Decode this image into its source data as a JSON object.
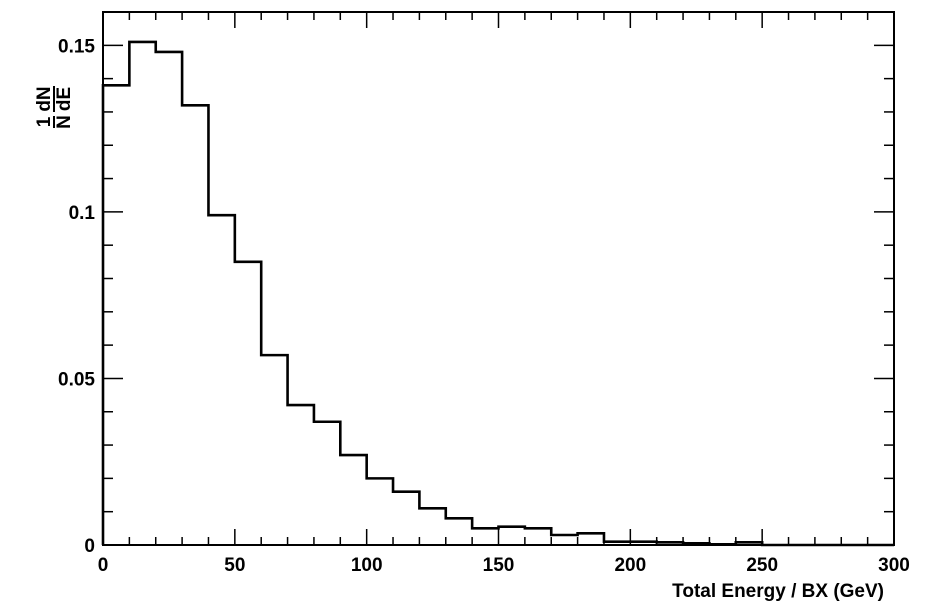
{
  "chart_data": {
    "type": "histogram",
    "title": "",
    "xlabel": "Total Energy / BX (GeV)",
    "ylabel": {
      "prefix_num": "1",
      "prefix_den": "N",
      "frac_num": "dN",
      "frac_den": "dE"
    },
    "xlim": [
      0,
      300
    ],
    "ylim": [
      0,
      0.16
    ],
    "x_major_ticks": [
      0,
      50,
      100,
      150,
      200,
      250,
      300
    ],
    "x_tick_labels": [
      "0",
      "50",
      "100",
      "150",
      "200",
      "250",
      "300"
    ],
    "x_minor_step": 10,
    "y_major_ticks": [
      0,
      0.05,
      0.1,
      0.15
    ],
    "y_tick_labels": [
      "0",
      "0.05",
      "0.1",
      "0.15"
    ],
    "y_minor_step": 0.01,
    "bin_edges": [
      0,
      10,
      20,
      30,
      40,
      50,
      60,
      70,
      80,
      90,
      100,
      110,
      120,
      130,
      140,
      150,
      160,
      170,
      180,
      190,
      200,
      210,
      220,
      230,
      240,
      250,
      260,
      270,
      280,
      290,
      300
    ],
    "values": [
      0.138,
      0.151,
      0.148,
      0.132,
      0.099,
      0.085,
      0.057,
      0.042,
      0.037,
      0.027,
      0.02,
      0.016,
      0.011,
      0.008,
      0.005,
      0.0055,
      0.005,
      0.003,
      0.0035,
      0.001,
      0.001,
      0.0008,
      0.0005,
      0.0002,
      0.0008,
      0.0,
      0.0,
      0.0,
      0.0,
      0.0
    ],
    "grid": false,
    "legend": "none",
    "line_color": "#000000",
    "background": "#ffffff"
  }
}
